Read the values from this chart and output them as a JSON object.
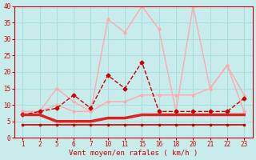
{
  "xlabel": "Vent moyen/en rafales ( km/h )",
  "background_color": "#c8ecec",
  "grid_color": "#aadddd",
  "x_labels": [
    "1",
    "2",
    "5",
    "6",
    "7",
    "10",
    "11",
    "15",
    "16",
    "18",
    "20",
    "21",
    "22",
    "23"
  ],
  "ylim": [
    0,
    40
  ],
  "yticks": [
    0,
    5,
    10,
    15,
    20,
    25,
    30,
    35,
    40
  ],
  "series": [
    {
      "y": [
        4,
        4,
        4,
        4,
        4,
        4,
        4,
        4,
        4,
        4,
        4,
        4,
        4,
        4
      ],
      "color": "#cc0000",
      "linewidth": 1.2,
      "marker": "s",
      "markersize": 2.0,
      "linestyle": "solid"
    },
    {
      "y": [
        7,
        7,
        5,
        5,
        5,
        6,
        6,
        7,
        7,
        7,
        7,
        7,
        7,
        7
      ],
      "color": "#dd2222",
      "linewidth": 2.5,
      "marker": null,
      "markersize": 0,
      "linestyle": "solid"
    },
    {
      "y": [
        7,
        8,
        9,
        13,
        9,
        19,
        15,
        23,
        8,
        8,
        8,
        8,
        8,
        12
      ],
      "color": "#cc0000",
      "linewidth": 1.0,
      "marker": "D",
      "markersize": 2.5,
      "linestyle": "dashed"
    },
    {
      "y": [
        8,
        8,
        10,
        8,
        8,
        11,
        11,
        13,
        13,
        13,
        13,
        15,
        22,
        13
      ],
      "color": "#ffaaaa",
      "linewidth": 1.0,
      "marker": "o",
      "markersize": 2.0,
      "linestyle": "solid"
    },
    {
      "y": [
        8,
        8,
        15,
        11,
        8,
        36,
        32,
        40,
        33,
        8,
        40,
        15,
        22,
        8
      ],
      "color": "#ffaaaa",
      "linewidth": 1.0,
      "marker": "o",
      "markersize": 2.0,
      "linestyle": "solid"
    }
  ]
}
